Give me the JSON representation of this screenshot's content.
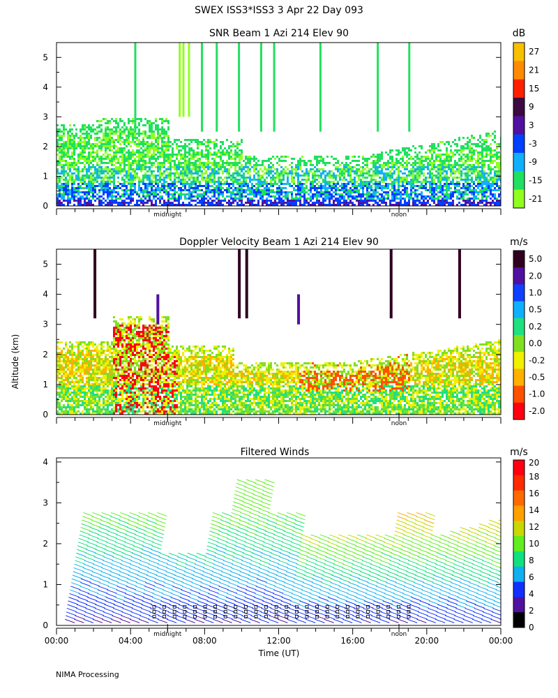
{
  "figure": {
    "title": "SWEX ISS3*ISS3   3 Apr 22 Day 093",
    "ylabel": "Altitude (km)",
    "xlabel": "Time (UT)",
    "footer": "NIMA Processing",
    "marker_labels": [
      "midnight",
      "noon"
    ]
  },
  "chart_data": [
    {
      "type": "heatmap",
      "title": "SNR Beam 1 Azi 214 Elev 90",
      "ylim": [
        0,
        5.5
      ],
      "y_ticks": [
        "0",
        "1",
        "2",
        "3",
        "4",
        "5"
      ],
      "colorbar_unit": "dB",
      "colorbar_labels": [
        "27",
        "21",
        "15",
        "9",
        "3",
        "-3",
        "-9",
        "-15",
        "-21"
      ],
      "colorbar_colors": [
        "#f7c000",
        "#ff8a00",
        "#ff2000",
        "#3c0a40",
        "#5010a0",
        "#0040ff",
        "#10b0ff",
        "#20e060",
        "#90ff20"
      ],
      "x_tick_hours": [
        0,
        4,
        8,
        12,
        16,
        20,
        24
      ],
      "marker_hours": [
        6,
        18.5
      ]
    },
    {
      "type": "heatmap",
      "title": "Doppler Velocity Beam 1 Azi 214 Elev 90",
      "ylim": [
        0,
        5.5
      ],
      "y_ticks": [
        "0",
        "1",
        "2",
        "3",
        "4",
        "5"
      ],
      "colorbar_unit": "m/s",
      "colorbar_labels": [
        "5.0",
        "2.0",
        "1.0",
        "0.5",
        "0.2",
        "0.0",
        "-0.2",
        "-0.5",
        "-1.0",
        "-2.0"
      ],
      "colorbar_colors": [
        "#300020",
        "#5010a0",
        "#1040ff",
        "#10b0ff",
        "#20e080",
        "#80e020",
        "#f0f000",
        "#ffb000",
        "#ff5000",
        "#ff0010"
      ],
      "x_tick_hours": [
        0,
        4,
        8,
        12,
        16,
        20,
        24
      ],
      "marker_hours": [
        6,
        18.5
      ]
    },
    {
      "type": "scatter",
      "title": "Filtered Winds",
      "ylim": [
        0,
        4.1
      ],
      "y_ticks": [
        "0",
        "1",
        "2",
        "3",
        "4"
      ],
      "colorbar_unit": "m/s",
      "colorbar_labels": [
        "20",
        "18",
        "16",
        "14",
        "12",
        "10",
        "8",
        "6",
        "4",
        "2",
        "0"
      ],
      "colorbar_colors": [
        "#ff0010",
        "#ff2a00",
        "#ff6a00",
        "#ffa000",
        "#c8d800",
        "#60ee20",
        "#10e080",
        "#10b0f0",
        "#1030ff",
        "#5010a0",
        "#000000"
      ],
      "x_tick_hours": [
        0,
        4,
        8,
        12,
        16,
        20,
        24
      ],
      "x_tick_labels": [
        "00:00",
        "04:00",
        "08:00",
        "12:00",
        "16:00",
        "20:00",
        "00:00"
      ],
      "marker_hours": [
        6,
        18.5
      ]
    }
  ]
}
